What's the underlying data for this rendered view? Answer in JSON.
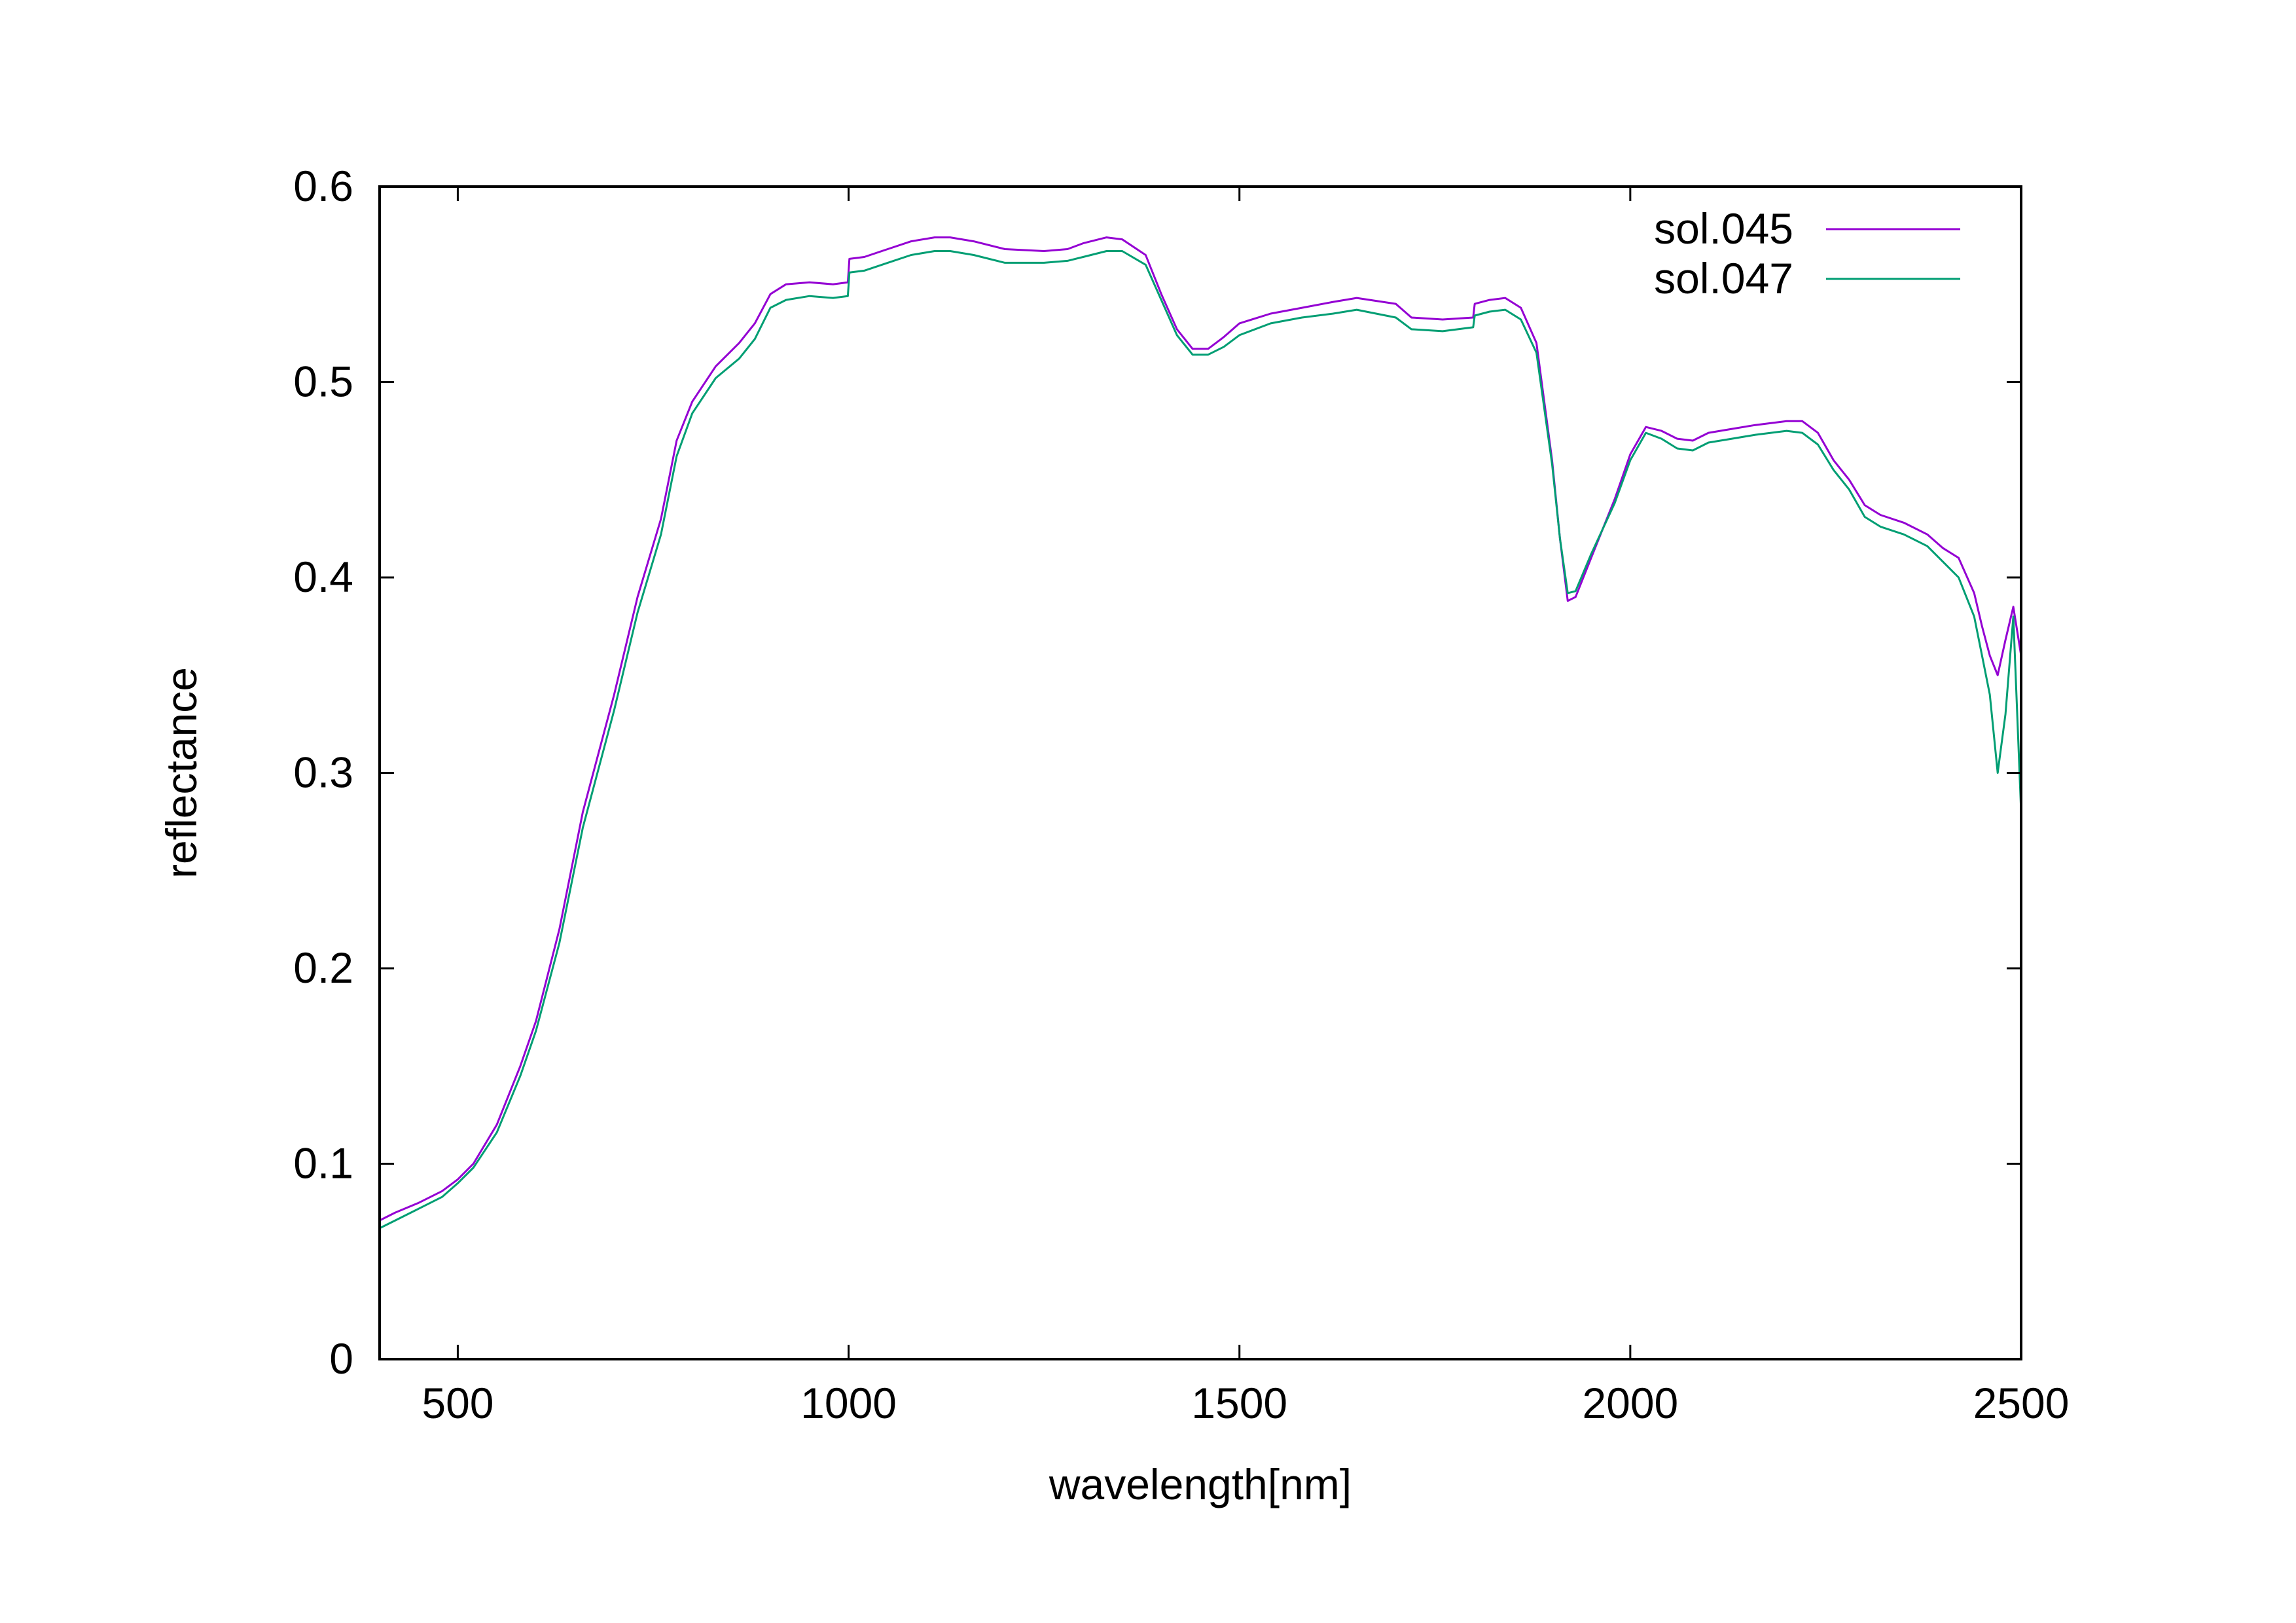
{
  "chart_data": {
    "type": "line",
    "title": "",
    "xlabel": "wavelength[nm]",
    "ylabel": "reflectance",
    "xlim": [
      400,
      2500
    ],
    "ylim": [
      0,
      0.6
    ],
    "x_ticks": [
      500,
      1000,
      1500,
      2000,
      2500
    ],
    "x_tick_labels": [
      "500",
      "1000",
      "1500",
      "2000",
      "2500"
    ],
    "y_ticks": [
      0,
      0.1,
      0.2,
      0.3,
      0.4,
      0.5,
      0.6
    ],
    "y_tick_labels": [
      "0",
      "0.1",
      "0.2",
      "0.3",
      "0.4",
      "0.5",
      "0.6"
    ],
    "grid": false,
    "legend_position": "top-right",
    "series": [
      {
        "name": "sol.045",
        "color": "#9400d3",
        "x": [
          400,
          420,
          450,
          480,
          500,
          520,
          550,
          580,
          600,
          630,
          660,
          700,
          730,
          760,
          780,
          800,
          830,
          860,
          880,
          900,
          920,
          950,
          980,
          999,
          1001,
          1020,
          1050,
          1080,
          1110,
          1130,
          1160,
          1200,
          1250,
          1280,
          1300,
          1330,
          1350,
          1380,
          1400,
          1420,
          1440,
          1460,
          1480,
          1500,
          1540,
          1580,
          1620,
          1650,
          1700,
          1720,
          1760,
          1799,
          1801,
          1820,
          1840,
          1860,
          1880,
          1900,
          1910,
          1920,
          1930,
          1950,
          1980,
          2000,
          2020,
          2040,
          2060,
          2080,
          2100,
          2130,
          2160,
          2200,
          2220,
          2240,
          2260,
          2280,
          2300,
          2320,
          2350,
          2380,
          2400,
          2420,
          2440,
          2450,
          2460,
          2470,
          2480,
          2490,
          2500
        ],
        "values": [
          0.071,
          0.075,
          0.08,
          0.086,
          0.092,
          0.1,
          0.12,
          0.15,
          0.173,
          0.22,
          0.28,
          0.34,
          0.39,
          0.43,
          0.47,
          0.49,
          0.508,
          0.52,
          0.53,
          0.545,
          0.55,
          0.551,
          0.55,
          0.551,
          0.563,
          0.564,
          0.568,
          0.572,
          0.574,
          0.574,
          0.572,
          0.568,
          0.567,
          0.568,
          0.571,
          0.574,
          0.573,
          0.565,
          0.545,
          0.527,
          0.517,
          0.517,
          0.523,
          0.53,
          0.535,
          0.538,
          0.541,
          0.543,
          0.54,
          0.533,
          0.532,
          0.533,
          0.54,
          0.542,
          0.543,
          0.538,
          0.52,
          0.46,
          0.42,
          0.388,
          0.39,
          0.41,
          0.44,
          0.463,
          0.477,
          0.475,
          0.471,
          0.47,
          0.474,
          0.476,
          0.478,
          0.48,
          0.48,
          0.474,
          0.46,
          0.45,
          0.437,
          0.432,
          0.428,
          0.422,
          0.415,
          0.41,
          0.392,
          0.375,
          0.36,
          0.35,
          0.368,
          0.385,
          0.36
        ]
      },
      {
        "name": "sol.047",
        "color": "#009e73",
        "x": [
          400,
          420,
          450,
          480,
          500,
          520,
          550,
          580,
          600,
          630,
          660,
          700,
          730,
          760,
          780,
          800,
          830,
          860,
          880,
          900,
          920,
          950,
          980,
          999,
          1001,
          1020,
          1050,
          1080,
          1110,
          1130,
          1160,
          1200,
          1250,
          1280,
          1300,
          1330,
          1350,
          1380,
          1400,
          1420,
          1440,
          1460,
          1480,
          1500,
          1540,
          1580,
          1620,
          1650,
          1700,
          1720,
          1760,
          1799,
          1801,
          1820,
          1840,
          1860,
          1880,
          1900,
          1910,
          1920,
          1930,
          1950,
          1980,
          2000,
          2020,
          2040,
          2060,
          2080,
          2100,
          2130,
          2160,
          2200,
          2220,
          2240,
          2260,
          2280,
          2300,
          2320,
          2350,
          2380,
          2400,
          2420,
          2440,
          2450,
          2460,
          2470,
          2480,
          2490,
          2500
        ],
        "values": [
          0.067,
          0.071,
          0.077,
          0.083,
          0.09,
          0.098,
          0.116,
          0.145,
          0.168,
          0.213,
          0.272,
          0.332,
          0.382,
          0.422,
          0.462,
          0.484,
          0.502,
          0.512,
          0.522,
          0.538,
          0.542,
          0.544,
          0.543,
          0.544,
          0.556,
          0.557,
          0.561,
          0.565,
          0.567,
          0.567,
          0.565,
          0.561,
          0.561,
          0.562,
          0.564,
          0.567,
          0.567,
          0.56,
          0.542,
          0.524,
          0.514,
          0.514,
          0.518,
          0.524,
          0.53,
          0.533,
          0.535,
          0.537,
          0.533,
          0.527,
          0.526,
          0.528,
          0.534,
          0.536,
          0.537,
          0.532,
          0.515,
          0.458,
          0.42,
          0.392,
          0.393,
          0.412,
          0.438,
          0.46,
          0.474,
          0.471,
          0.466,
          0.465,
          0.469,
          0.471,
          0.473,
          0.475,
          0.474,
          0.468,
          0.455,
          0.445,
          0.431,
          0.426,
          0.422,
          0.416,
          0.408,
          0.4,
          0.38,
          0.36,
          0.34,
          0.3,
          0.33,
          0.38,
          0.28
        ]
      }
    ]
  }
}
